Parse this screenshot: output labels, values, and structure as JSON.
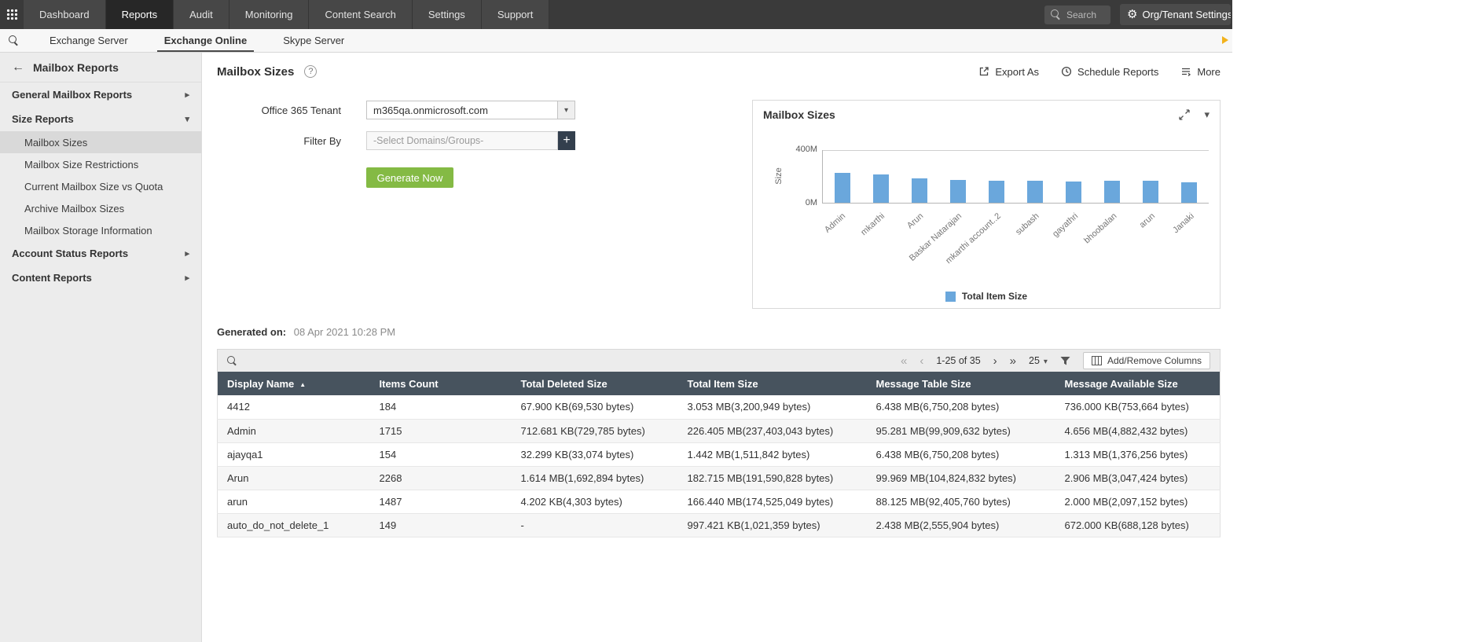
{
  "top_nav": {
    "tabs": [
      {
        "label": "Dashboard",
        "active": false
      },
      {
        "label": "Reports",
        "active": true
      },
      {
        "label": "Audit",
        "active": false
      },
      {
        "label": "Monitoring",
        "active": false
      },
      {
        "label": "Content Search",
        "active": false
      },
      {
        "label": "Settings",
        "active": false
      },
      {
        "label": "Support",
        "active": false
      }
    ],
    "search_placeholder": "Search",
    "settings_label": "Org/Tenant Settings"
  },
  "sub_nav": {
    "tabs": [
      {
        "label": "Exchange Server",
        "active": false
      },
      {
        "label": "Exchange Online",
        "active": true
      },
      {
        "label": "Skype Server",
        "active": false
      }
    ]
  },
  "sidebar": {
    "title": "Mailbox Reports",
    "sections": [
      {
        "label": "General Mailbox Reports",
        "expanded": false,
        "items": []
      },
      {
        "label": "Size Reports",
        "expanded": true,
        "items": [
          {
            "label": "Mailbox Sizes",
            "selected": true
          },
          {
            "label": "Mailbox Size Restrictions",
            "selected": false
          },
          {
            "label": "Current Mailbox Size vs Quota",
            "selected": false
          },
          {
            "label": "Archive Mailbox Sizes",
            "selected": false
          },
          {
            "label": "Mailbox Storage Information",
            "selected": false
          }
        ]
      },
      {
        "label": "Account Status Reports",
        "expanded": false,
        "items": []
      },
      {
        "label": "Content Reports",
        "expanded": false,
        "items": []
      }
    ]
  },
  "main": {
    "title": "Mailbox Sizes",
    "actions": [
      {
        "label": "Export As"
      },
      {
        "label": "Schedule Reports"
      },
      {
        "label": "More"
      }
    ],
    "form": {
      "tenant_label": "Office 365 Tenant",
      "tenant_value": "m365qa.onmicrosoft.com",
      "filter_label": "Filter By",
      "filter_placeholder": "-Select Domains/Groups-",
      "generate_label": "Generate Now"
    },
    "generated_on_label": "Generated on:",
    "generated_on_value": "08 Apr 2021 10:28 PM"
  },
  "chart_data": {
    "type": "bar",
    "title": "Mailbox Sizes",
    "ylabel": "Size",
    "xlabel": "",
    "ylim": [
      0,
      400
    ],
    "ytick_labels": [
      "400M",
      "0M"
    ],
    "unit": "MB",
    "grid": false,
    "legend_position": "bottom",
    "bar_color": "#6aa7dc",
    "categories": [
      "Admin",
      "mkarthi",
      "Arun",
      "Baskar Natarajan",
      "mkarthi account..2",
      "subash",
      "gayathri",
      "bhoobalan",
      "arun",
      "Janaki"
    ],
    "series": [
      {
        "name": "Total Item Size",
        "values": [
          226.4,
          214,
          182.7,
          171,
          168,
          170,
          164,
          167,
          166.4,
          157
        ]
      }
    ]
  },
  "table": {
    "toolbar": {
      "pagination": {
        "range": "1-25 of 35",
        "page_size": "25"
      },
      "add_remove_label": "Add/Remove Columns"
    },
    "columns": [
      "Display Name",
      "Items Count",
      "Total Deleted Size",
      "Total Item Size",
      "Message Table Size",
      "Message Available Size"
    ],
    "sort_column": "Display Name",
    "sort_direction": "asc",
    "rows": [
      [
        "4412",
        "184",
        "67.900 KB(69,530 bytes)",
        "3.053 MB(3,200,949 bytes)",
        "6.438 MB(6,750,208 bytes)",
        "736.000 KB(753,664 bytes)"
      ],
      [
        "Admin",
        "1715",
        "712.681 KB(729,785 bytes)",
        "226.405 MB(237,403,043 bytes)",
        "95.281 MB(99,909,632 bytes)",
        "4.656 MB(4,882,432 bytes)"
      ],
      [
        "ajayqa1",
        "154",
        "32.299 KB(33,074 bytes)",
        "1.442 MB(1,511,842 bytes)",
        "6.438 MB(6,750,208 bytes)",
        "1.313 MB(1,376,256 bytes)"
      ],
      [
        "Arun",
        "2268",
        "1.614 MB(1,692,894 bytes)",
        "182.715 MB(191,590,828 bytes)",
        "99.969 MB(104,824,832 bytes)",
        "2.906 MB(3,047,424 bytes)"
      ],
      [
        "arun",
        "1487",
        "4.202 KB(4,303 bytes)",
        "166.440 MB(174,525,049 bytes)",
        "88.125 MB(92,405,760 bytes)",
        "2.000 MB(2,097,152 bytes)"
      ],
      [
        "auto_do_not_delete_1",
        "149",
        "-",
        "997.421 KB(1,021,359 bytes)",
        "2.438 MB(2,555,904 bytes)",
        "672.000 KB(688,128 bytes)"
      ]
    ]
  },
  "colors": {
    "primary_green": "#84ba44",
    "table_header_slate": "#47535e",
    "bar_blue": "#6aa7dc",
    "accent_yellow": "#f2b21c",
    "topnav_dark": "#3a3a3a"
  }
}
